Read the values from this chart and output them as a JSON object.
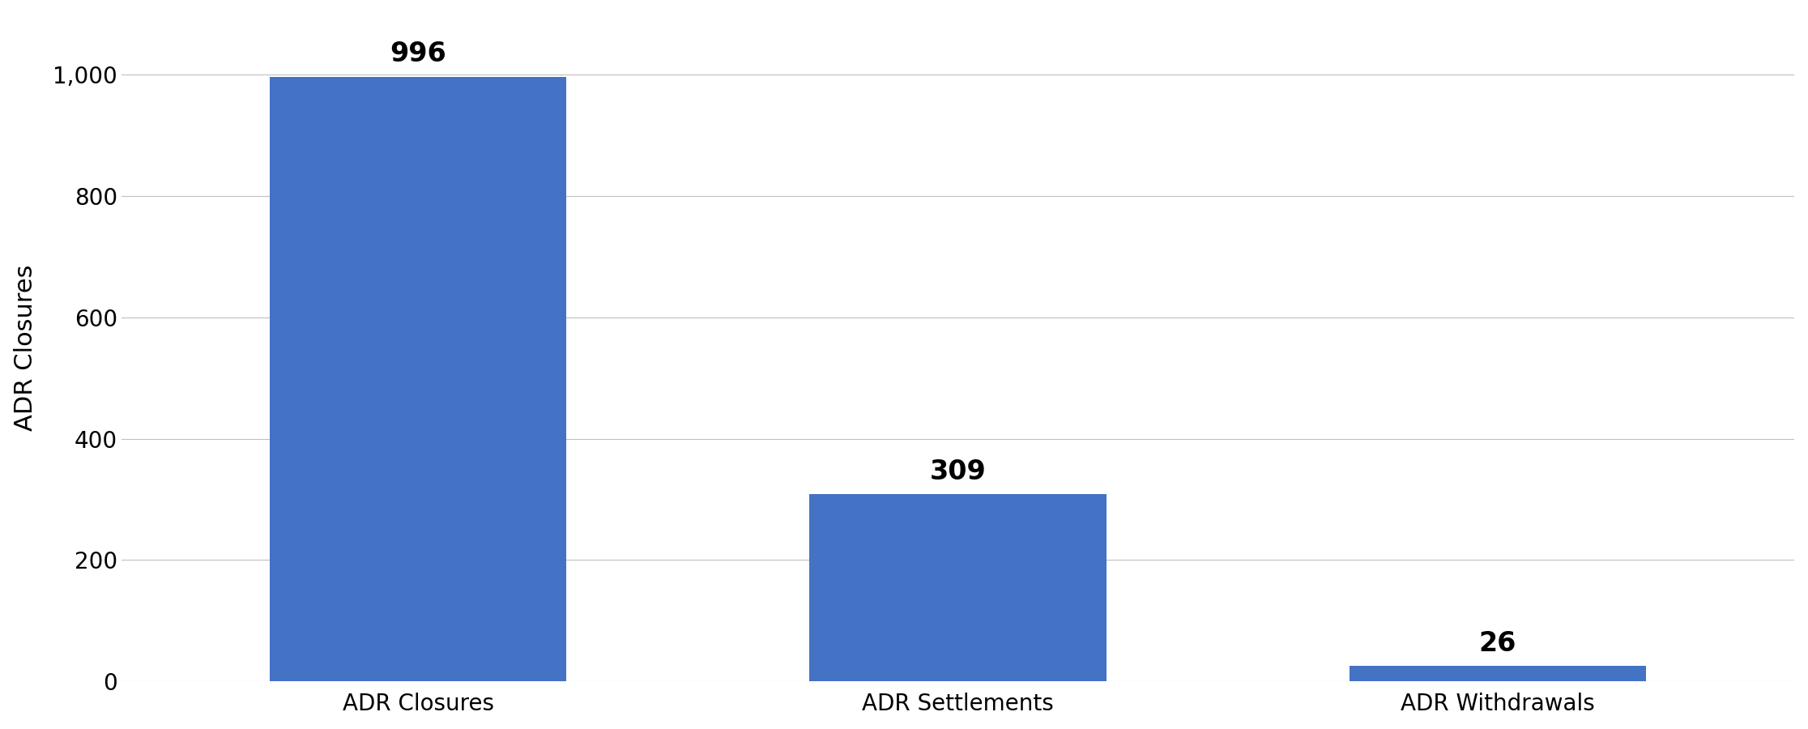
{
  "categories": [
    "ADR Closures",
    "ADR Settlements",
    "ADR Withdrawals"
  ],
  "values": [
    996,
    309,
    26
  ],
  "bar_color": "#4472C4",
  "ylabel": "ADR Closures",
  "ylim": [
    0,
    1100
  ],
  "yticks": [
    0,
    200,
    400,
    600,
    800,
    1000
  ],
  "ytick_labels": [
    "0",
    "200",
    "400",
    "600",
    "800",
    "1,000"
  ],
  "background_color": "#ffffff",
  "grid_color": "#c0c0c0",
  "label_fontsize": 22,
  "value_fontsize": 24,
  "tick_fontsize": 20,
  "bar_width": 0.55
}
